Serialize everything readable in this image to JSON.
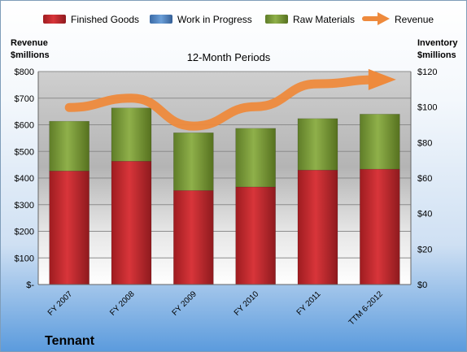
{
  "chart_data": {
    "type": "bar",
    "stacked": true,
    "subtitle": "12-Month Periods",
    "company": "Tennant",
    "left_axis_label": [
      "Revenue",
      "$millions"
    ],
    "right_axis_label": [
      "Inventory",
      "$millions"
    ],
    "left_ylim": [
      0,
      800
    ],
    "right_ylim": [
      0,
      120
    ],
    "left_ticks": [
      "$-",
      "$100",
      "$200",
      "$300",
      "$400",
      "$500",
      "$600",
      "$700",
      "$800"
    ],
    "right_ticks": [
      "$0",
      "$20",
      "$40",
      "$60",
      "$80",
      "$100",
      "$120"
    ],
    "categories": [
      "FY 2007",
      "FY 2008",
      "FY 2009",
      "FY 2010",
      "FY 2011",
      "TTM 6-2012"
    ],
    "legend_position": "top",
    "series": [
      {
        "name": "Finished Goods",
        "axis": "right",
        "color": "#c0262c",
        "values": [
          64,
          69.5,
          53,
          55,
          64.5,
          65
        ]
      },
      {
        "name": "Work in Progress",
        "axis": "right",
        "color": "#4f81bd",
        "values": [
          0,
          0,
          0,
          0,
          0,
          0
        ]
      },
      {
        "name": "Raw Materials",
        "axis": "right",
        "color": "#7a9a3a",
        "values": [
          28,
          30,
          32.5,
          33,
          29,
          31
        ]
      },
      {
        "name": "Revenue",
        "axis": "left",
        "type": "line",
        "color": "#ee8a3c",
        "values": [
          665,
          700,
          595,
          668,
          754,
          770
        ]
      }
    ]
  }
}
